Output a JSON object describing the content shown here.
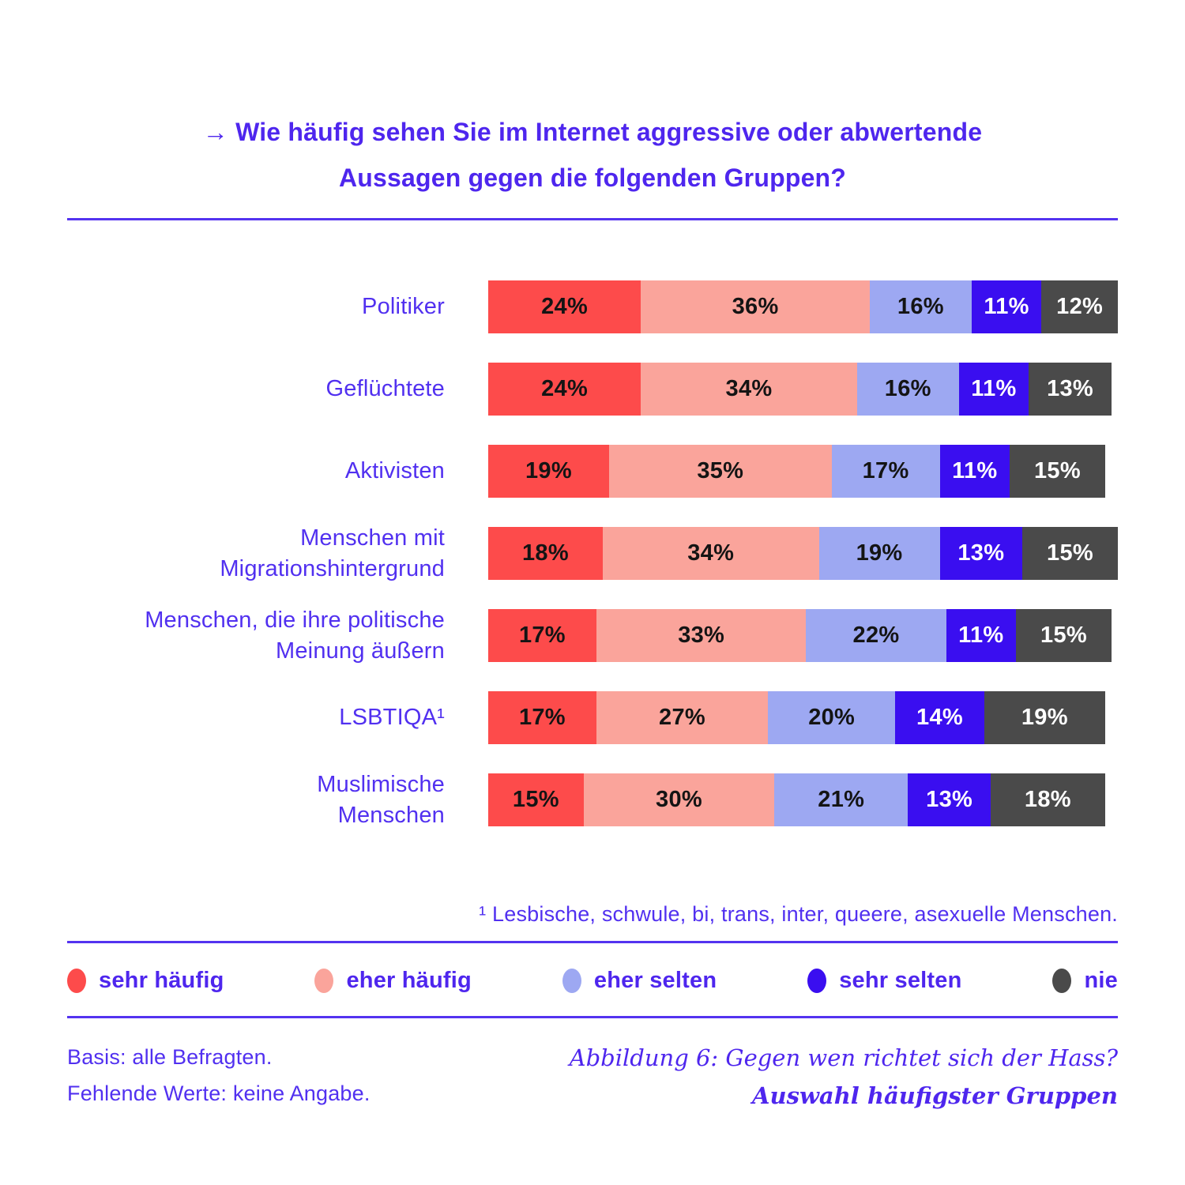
{
  "accent_color": "#4E26EE",
  "title": {
    "line1": "→ Wie häufig sehen Sie im Internet aggressive oder abwertende",
    "line2": "Aussagen gegen die folgenden Gruppen?"
  },
  "chart_data": {
    "type": "bar",
    "orientation": "horizontal-stacked",
    "unit": "percent",
    "value_suffix": "%",
    "xlim": [
      0,
      100
    ],
    "categories": [
      "Politiker",
      "Geflüchtete",
      "Aktivisten",
      "Menschen mit Migrationshintergrund",
      "Menschen, die ihre politische Meinung äußern",
      "LSBTIQA¹",
      "Muslimische Menschen"
    ],
    "category_lines": [
      [
        "Politiker"
      ],
      [
        "Geflüchtete"
      ],
      [
        "Aktivisten"
      ],
      [
        "Menschen mit",
        "Migrationshintergrund"
      ],
      [
        "Menschen, die ihre politische",
        "Meinung äußern"
      ],
      [
        "LSBTIQA¹"
      ],
      [
        "Muslimische",
        "Menschen"
      ]
    ],
    "series": [
      {
        "name": "sehr häufig",
        "color": "#FD4B4B",
        "text_color": "#141414",
        "values": [
          24,
          24,
          19,
          18,
          17,
          17,
          15
        ]
      },
      {
        "name": "eher häufig",
        "color": "#FAA49B",
        "text_color": "#141414",
        "values": [
          36,
          34,
          35,
          34,
          33,
          27,
          30
        ]
      },
      {
        "name": "eher selten",
        "color": "#9DA8F2",
        "text_color": "#141414",
        "values": [
          16,
          16,
          17,
          19,
          22,
          20,
          21
        ]
      },
      {
        "name": "sehr selten",
        "color": "#3A0EF0",
        "text_color": "#FFFFFF",
        "values": [
          11,
          11,
          11,
          13,
          11,
          14,
          13
        ]
      },
      {
        "name": "nie",
        "color": "#4A4A4A",
        "text_color": "#FFFFFF",
        "values": [
          12,
          13,
          15,
          15,
          15,
          19,
          18
        ]
      }
    ],
    "legend_position": "bottom"
  },
  "footnote": "¹ Lesbische, schwule, bi, trans, inter, queere, asexuelle Menschen.",
  "footer": {
    "left_line1": "Basis: alle Befragten.",
    "left_line2": "Fehlende Werte: keine Angabe.",
    "right_line1": "Abbildung 6: Gegen wen richtet sich der Hass?",
    "right_line2": "Auswahl häufigster Gruppen"
  }
}
